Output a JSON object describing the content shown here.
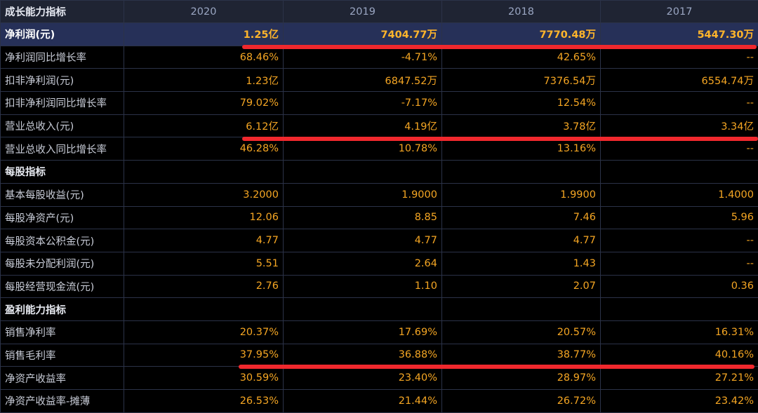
{
  "header": {
    "title": "成长能力指标",
    "years": [
      "2020",
      "2019",
      "2018",
      "2017"
    ]
  },
  "rows": [
    {
      "label": "净利润(元)",
      "values": [
        "1.25亿",
        "7404.77万",
        "7770.48万",
        "5447.30万"
      ]
    },
    {
      "label": "净利润同比增长率",
      "values": [
        "68.46%",
        "-4.71%",
        "42.65%",
        "--"
      ]
    },
    {
      "label": "扣非净利润(元)",
      "values": [
        "1.23亿",
        "6847.52万",
        "7376.54万",
        "6554.74万"
      ]
    },
    {
      "label": "扣非净利润同比增长率",
      "values": [
        "79.02%",
        "-7.17%",
        "12.54%",
        "--"
      ]
    },
    {
      "label": "营业总收入(元)",
      "values": [
        "6.12亿",
        "4.19亿",
        "3.78亿",
        "3.34亿"
      ]
    },
    {
      "label": "营业总收入同比增长率",
      "values": [
        "46.28%",
        "10.78%",
        "13.16%",
        "--"
      ]
    },
    {
      "label": "每股指标",
      "values": [
        "",
        "",
        "",
        ""
      ]
    },
    {
      "label": "基本每股收益(元)",
      "values": [
        "3.2000",
        "1.9000",
        "1.9900",
        "1.4000"
      ]
    },
    {
      "label": "每股净资产(元)",
      "values": [
        "12.06",
        "8.85",
        "7.46",
        "5.96"
      ]
    },
    {
      "label": "每股资本公积金(元)",
      "values": [
        "4.77",
        "4.77",
        "4.77",
        "--"
      ]
    },
    {
      "label": "每股未分配利润(元)",
      "values": [
        "5.51",
        "2.64",
        "1.43",
        "--"
      ]
    },
    {
      "label": "每股经营现金流(元)",
      "values": [
        "2.76",
        "1.10",
        "2.07",
        "0.36"
      ]
    },
    {
      "label": "盈利能力指标",
      "values": [
        "",
        "",
        "",
        ""
      ]
    },
    {
      "label": "销售净利率",
      "values": [
        "20.37%",
        "17.69%",
        "20.57%",
        "16.31%"
      ]
    },
    {
      "label": "销售毛利率",
      "values": [
        "37.95%",
        "36.88%",
        "38.77%",
        "40.16%"
      ]
    },
    {
      "label": "净资产收益率",
      "values": [
        "30.59%",
        "23.40%",
        "28.97%",
        "27.21%"
      ]
    },
    {
      "label": "净资产收益率-摊薄",
      "values": [
        "26.53%",
        "21.44%",
        "26.72%",
        "23.42%"
      ]
    }
  ],
  "colors": {
    "value": "#f5a623",
    "highlight_row": "#263058",
    "annotation_line": "#f0282d"
  }
}
